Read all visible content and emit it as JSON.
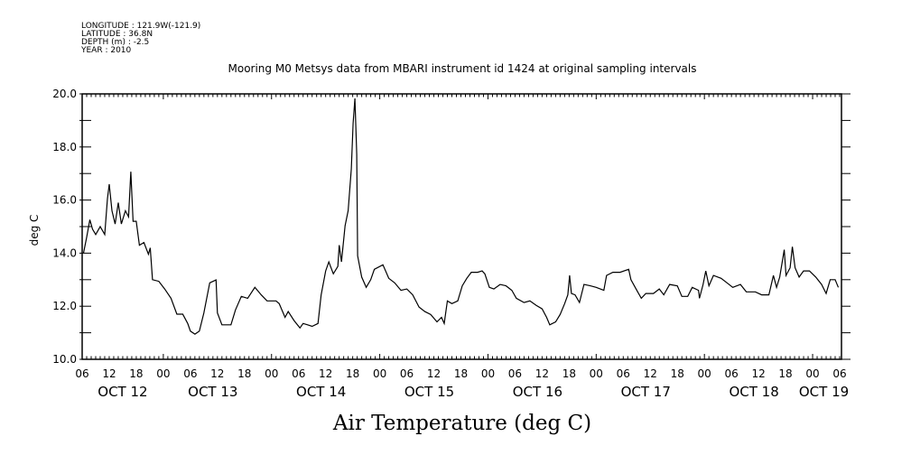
{
  "header": {
    "lines": [
      "LONGITUDE : 121.9W(-121.9)",
      "LATITUDE : 36.8N",
      "DEPTH (m) : -2.5",
      "YEAR : 2010"
    ]
  },
  "chart_data": {
    "type": "line",
    "title": "Mooring M0 Metsys data from MBARI instrument id 1424 at original sampling intervals",
    "xlabel": "Air Temperature (deg C)",
    "ylabel": "deg C",
    "x_units": "hours since OCT 12 06:00",
    "xlim": [
      0,
      168.4
    ],
    "ylim": [
      10,
      20
    ],
    "y_ticks": [
      10,
      12,
      14,
      16,
      18,
      20
    ],
    "y_tick_labels": [
      "10.0",
      "12.0",
      "14.0",
      "16.0",
      "18.0",
      "20.0"
    ],
    "x_tick_hours": [
      0,
      6,
      12,
      18,
      24,
      30,
      36,
      42,
      48,
      54,
      60,
      66,
      72,
      78,
      84,
      90,
      96,
      102,
      108,
      114,
      120,
      126,
      132,
      138,
      144,
      150,
      156,
      162,
      168
    ],
    "x_tick_labels": [
      "06",
      "12",
      "18",
      "00",
      "06",
      "12",
      "18",
      "00",
      "06",
      "12",
      "18",
      "00",
      "06",
      "12",
      "18",
      "00",
      "06",
      "12",
      "18",
      "00",
      "06",
      "12",
      "18",
      "00",
      "06",
      "12",
      "18",
      "00",
      "06"
    ],
    "day_labels": [
      {
        "text": "OCT 12",
        "hour": 9
      },
      {
        "text": "OCT 13",
        "hour": 29
      },
      {
        "text": "OCT 14",
        "hour": 53
      },
      {
        "text": "OCT 15",
        "hour": 77
      },
      {
        "text": "OCT 16",
        "hour": 101
      },
      {
        "text": "OCT 17",
        "hour": 125
      },
      {
        "text": "OCT 18",
        "hour": 149
      },
      {
        "text": "OCT 19",
        "hour": 164.5
      }
    ],
    "grid": false,
    "series": [
      {
        "name": "Air Temperature",
        "color": "#000000",
        "points": [
          [
            0.3,
            14.0
          ],
          [
            1,
            14.6
          ],
          [
            1.7,
            15.26
          ],
          [
            2.3,
            14.9
          ],
          [
            3,
            14.7
          ],
          [
            4,
            15.0
          ],
          [
            5,
            14.7
          ],
          [
            5.6,
            16.05
          ],
          [
            6,
            16.6
          ],
          [
            6.6,
            15.6
          ],
          [
            7.3,
            15.1
          ],
          [
            8,
            15.9
          ],
          [
            8.7,
            15.1
          ],
          [
            9.6,
            15.6
          ],
          [
            10.3,
            15.37
          ],
          [
            10.8,
            17.07
          ],
          [
            11.3,
            15.2
          ],
          [
            12,
            15.2
          ],
          [
            12.7,
            14.3
          ],
          [
            13.7,
            14.4
          ],
          [
            14.7,
            13.96
          ],
          [
            15.1,
            14.2
          ],
          [
            15.6,
            13.0
          ],
          [
            17,
            12.94
          ],
          [
            18.3,
            12.65
          ],
          [
            19.7,
            12.3
          ],
          [
            21,
            11.7
          ],
          [
            22.3,
            11.7
          ],
          [
            23.4,
            11.35
          ],
          [
            24,
            11.06
          ],
          [
            25,
            10.95
          ],
          [
            26,
            11.06
          ],
          [
            27,
            11.75
          ],
          [
            28.3,
            12.88
          ],
          [
            29.7,
            12.99
          ],
          [
            30,
            11.75
          ],
          [
            31,
            11.3
          ],
          [
            33,
            11.3
          ],
          [
            34,
            11.86
          ],
          [
            35.3,
            12.37
          ],
          [
            36.7,
            12.3
          ],
          [
            38.3,
            12.71
          ],
          [
            39.7,
            12.43
          ],
          [
            41,
            12.2
          ],
          [
            43,
            12.2
          ],
          [
            43.7,
            12.1
          ],
          [
            45,
            11.58
          ],
          [
            45.7,
            11.8
          ],
          [
            47,
            11.46
          ],
          [
            48.3,
            11.18
          ],
          [
            49,
            11.35
          ],
          [
            50,
            11.3
          ],
          [
            51,
            11.24
          ],
          [
            52.3,
            11.35
          ],
          [
            53,
            12.43
          ],
          [
            54,
            13.33
          ],
          [
            54.7,
            13.67
          ],
          [
            55.7,
            13.22
          ],
          [
            56.7,
            13.5
          ],
          [
            57,
            14.3
          ],
          [
            57.5,
            13.67
          ],
          [
            58.3,
            15.03
          ],
          [
            59,
            15.6
          ],
          [
            59.7,
            17.17
          ],
          [
            60.1,
            18.89
          ],
          [
            60.5,
            19.83
          ],
          [
            60.9,
            17.73
          ],
          [
            61.1,
            13.9
          ],
          [
            62,
            13.1
          ],
          [
            63,
            12.71
          ],
          [
            64,
            13.0
          ],
          [
            64.8,
            13.39
          ],
          [
            66.7,
            13.56
          ],
          [
            68,
            13.05
          ],
          [
            69.3,
            12.88
          ],
          [
            70.7,
            12.6
          ],
          [
            72,
            12.65
          ],
          [
            73.3,
            12.43
          ],
          [
            74.7,
            11.97
          ],
          [
            76,
            11.8
          ],
          [
            77.3,
            11.69
          ],
          [
            78.7,
            11.41
          ],
          [
            79.7,
            11.58
          ],
          [
            80.3,
            11.35
          ],
          [
            81,
            12.2
          ],
          [
            82,
            12.1
          ],
          [
            83.3,
            12.2
          ],
          [
            84.3,
            12.77
          ],
          [
            85.3,
            13.05
          ],
          [
            86.3,
            13.28
          ],
          [
            87.7,
            13.28
          ],
          [
            88.7,
            13.33
          ],
          [
            89.3,
            13.22
          ],
          [
            90.3,
            12.71
          ],
          [
            91.3,
            12.65
          ],
          [
            92.7,
            12.82
          ],
          [
            94,
            12.77
          ],
          [
            95.3,
            12.6
          ],
          [
            96.3,
            12.3
          ],
          [
            98,
            12.14
          ],
          [
            99.3,
            12.2
          ],
          [
            100.7,
            12.03
          ],
          [
            102,
            11.9
          ],
          [
            103,
            11.58
          ],
          [
            103.7,
            11.3
          ],
          [
            105,
            11.41
          ],
          [
            106,
            11.69
          ],
          [
            107,
            12.1
          ],
          [
            107.7,
            12.43
          ],
          [
            108.1,
            13.16
          ],
          [
            108.5,
            12.48
          ],
          [
            109.3,
            12.43
          ],
          [
            110.3,
            12.14
          ],
          [
            111.3,
            12.82
          ],
          [
            112.7,
            12.77
          ],
          [
            114,
            12.71
          ],
          [
            115.7,
            12.6
          ],
          [
            116.3,
            13.16
          ],
          [
            117.7,
            13.28
          ],
          [
            119.3,
            13.28
          ],
          [
            121.2,
            13.39
          ],
          [
            121.7,
            13.0
          ],
          [
            123,
            12.6
          ],
          [
            124,
            12.3
          ],
          [
            125,
            12.48
          ],
          [
            126.7,
            12.48
          ],
          [
            128,
            12.65
          ],
          [
            129,
            12.43
          ],
          [
            130.3,
            12.82
          ],
          [
            132,
            12.77
          ],
          [
            133,
            12.37
          ],
          [
            134.3,
            12.37
          ],
          [
            135.3,
            12.71
          ],
          [
            136.7,
            12.6
          ],
          [
            136.9,
            12.3
          ],
          [
            137.7,
            12.82
          ],
          [
            138.3,
            13.33
          ],
          [
            139,
            12.77
          ],
          [
            140,
            13.16
          ],
          [
            141.7,
            13.05
          ],
          [
            143,
            12.88
          ],
          [
            144.3,
            12.71
          ],
          [
            146,
            12.82
          ],
          [
            147.3,
            12.54
          ],
          [
            149.3,
            12.54
          ],
          [
            150.7,
            12.43
          ],
          [
            152.3,
            12.43
          ],
          [
            153.3,
            13.16
          ],
          [
            154,
            12.71
          ],
          [
            154.7,
            13.1
          ],
          [
            155.7,
            14.13
          ],
          [
            156.1,
            13.16
          ],
          [
            157,
            13.45
          ],
          [
            157.5,
            14.24
          ],
          [
            158.1,
            13.45
          ],
          [
            159,
            13.1
          ],
          [
            160,
            13.33
          ],
          [
            161.3,
            13.33
          ],
          [
            162.7,
            13.1
          ],
          [
            164,
            12.82
          ],
          [
            165,
            12.48
          ],
          [
            165.9,
            13.0
          ],
          [
            167,
            13.0
          ],
          [
            167.7,
            12.71
          ]
        ]
      }
    ]
  }
}
